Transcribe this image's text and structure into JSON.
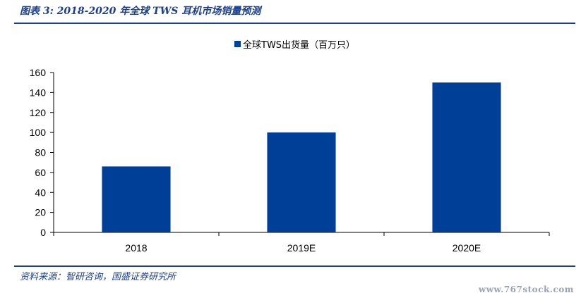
{
  "figure": {
    "title": "图表 3:  2018-2020 年全球 TWS  耳机市场销量预测",
    "source": "资料来源：智研咨询，国盛证券研究所",
    "watermark": "www.767stock.com"
  },
  "colors": {
    "bar": "#003f98",
    "rule": "#1a3f8f"
  },
  "chart_data": {
    "type": "bar",
    "title": "",
    "xlabel": "",
    "ylabel": "",
    "categories": [
      "2018",
      "2019E",
      "2020E"
    ],
    "series": [
      {
        "name": "全球TWS出货量（百万只）",
        "values": [
          66,
          100,
          150
        ]
      }
    ],
    "ylim": [
      0,
      160
    ],
    "yticks": [
      0,
      20,
      40,
      60,
      80,
      100,
      120,
      140,
      160
    ],
    "grid": false,
    "legend": "top-center"
  }
}
